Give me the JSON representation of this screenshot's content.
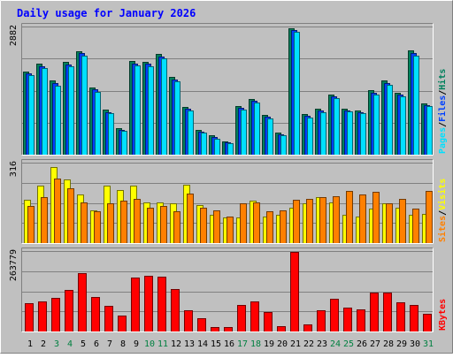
{
  "title": "Daily usage for January 2026",
  "colors": {
    "frame_bg": "#c0c0c0",
    "panel_bg": "#c0c0c0",
    "grid": "#808080",
    "title": "#0000ff",
    "hits": "#00805c",
    "files": "#0040ff",
    "pages": "#00e0ff",
    "visits": "#ffff00",
    "sites": "#ff8000",
    "kbytes": "#ff0000",
    "day_weekday": "#000000",
    "day_weekend": "#008040"
  },
  "chart_data": [
    {
      "type": "bar",
      "panel": "hits-files-pages",
      "ylabel_max": "2882",
      "ylim": [
        0,
        2882
      ],
      "grid": true,
      "right_labels": [
        {
          "text": "Pages",
          "color": "#00e0ff"
        },
        {
          "text": "/",
          "color": "#000000"
        },
        {
          "text": "Files",
          "color": "#0040ff"
        },
        {
          "text": "/",
          "color": "#000000"
        },
        {
          "text": "Hits",
          "color": "#00805c"
        }
      ],
      "categories": [
        "1",
        "2",
        "3",
        "4",
        "5",
        "6",
        "7",
        "8",
        "9",
        "10",
        "11",
        "12",
        "13",
        "14",
        "15",
        "16",
        "17",
        "18",
        "19",
        "20",
        "21",
        "22",
        "23",
        "24",
        "25",
        "26",
        "27",
        "28",
        "29",
        "30",
        "31"
      ],
      "series": [
        {
          "name": "Hits",
          "color": "#00805c",
          "values": [
            1870,
            2040,
            1660,
            2080,
            2330,
            1520,
            1010,
            600,
            2100,
            2090,
            2260,
            1740,
            1070,
            560,
            430,
            300,
            1100,
            1260,
            890,
            500,
            2850,
            910,
            1030,
            1360,
            1040,
            1000,
            1450,
            1660,
            1400,
            2340,
            1160
          ]
        },
        {
          "name": "Files",
          "color": "#0040ff",
          "values": [
            1820,
            1990,
            1610,
            2030,
            2280,
            1470,
            960,
            560,
            2050,
            2040,
            2210,
            1690,
            1030,
            520,
            390,
            270,
            1060,
            1220,
            850,
            460,
            2800,
            870,
            990,
            1310,
            1000,
            960,
            1400,
            1610,
            1360,
            2290,
            1120
          ]
        },
        {
          "name": "Pages",
          "color": "#00e0ff",
          "values": [
            1780,
            1940,
            1560,
            1980,
            2220,
            1420,
            930,
            530,
            2000,
            1990,
            2160,
            1640,
            1000,
            490,
            360,
            250,
            1020,
            1180,
            820,
            430,
            2760,
            840,
            950,
            1270,
            970,
            930,
            1360,
            1570,
            1320,
            2230,
            1090
          ]
        }
      ]
    },
    {
      "type": "bar",
      "panel": "visits-sites",
      "ylabel_max": "316",
      "ylim": [
        0,
        316
      ],
      "grid": true,
      "right_labels": [
        {
          "text": "Sites",
          "color": "#ff8000"
        },
        {
          "text": "/",
          "color": "#000000"
        },
        {
          "text": "Visits",
          "color": "#ffff00"
        }
      ],
      "categories": [
        "1",
        "2",
        "3",
        "4",
        "5",
        "6",
        "7",
        "8",
        "9",
        "10",
        "11",
        "12",
        "13",
        "14",
        "15",
        "16",
        "17",
        "18",
        "19",
        "20",
        "21",
        "22",
        "23",
        "24",
        "25",
        "26",
        "27",
        "28",
        "29",
        "30",
        "31"
      ],
      "series": [
        {
          "name": "Visits",
          "color": "#ffff00",
          "values": [
            170,
            225,
            300,
            250,
            190,
            130,
            225,
            210,
            225,
            160,
            160,
            155,
            230,
            150,
            110,
            100,
            100,
            165,
            105,
            110,
            140,
            155,
            180,
            160,
            110,
            105,
            135,
            155,
            140,
            110,
            115
          ]
        },
        {
          "name": "Sites",
          "color": "#ff8000",
          "values": [
            145,
            180,
            255,
            215,
            160,
            125,
            155,
            165,
            175,
            140,
            145,
            125,
            195,
            140,
            130,
            105,
            155,
            160,
            125,
            130,
            170,
            175,
            180,
            185,
            205,
            190,
            200,
            155,
            175,
            135,
            205
          ]
        }
      ]
    },
    {
      "type": "bar",
      "panel": "kbytes",
      "ylabel_max": "263779",
      "ylim": [
        0,
        263779
      ],
      "grid": true,
      "right_labels": [
        {
          "text": "KBytes",
          "color": "#ff0000"
        }
      ],
      "categories": [
        "1",
        "2",
        "3",
        "4",
        "5",
        "6",
        "7",
        "8",
        "9",
        "10",
        "11",
        "12",
        "13",
        "14",
        "15",
        "16",
        "17",
        "18",
        "19",
        "20",
        "21",
        "22",
        "23",
        "24",
        "25",
        "26",
        "27",
        "28",
        "29",
        "30",
        "31"
      ],
      "series": [
        {
          "name": "KBytes",
          "color": "#ff0000",
          "values": [
            92000,
            100000,
            110000,
            137000,
            190000,
            112000,
            85000,
            52000,
            177000,
            182000,
            180000,
            138000,
            70000,
            44000,
            14000,
            14000,
            87000,
            100000,
            64000,
            18000,
            262000,
            22000,
            70000,
            108000,
            79000,
            73000,
            127000,
            127000,
            97000,
            88000,
            58000
          ]
        }
      ]
    }
  ]
}
